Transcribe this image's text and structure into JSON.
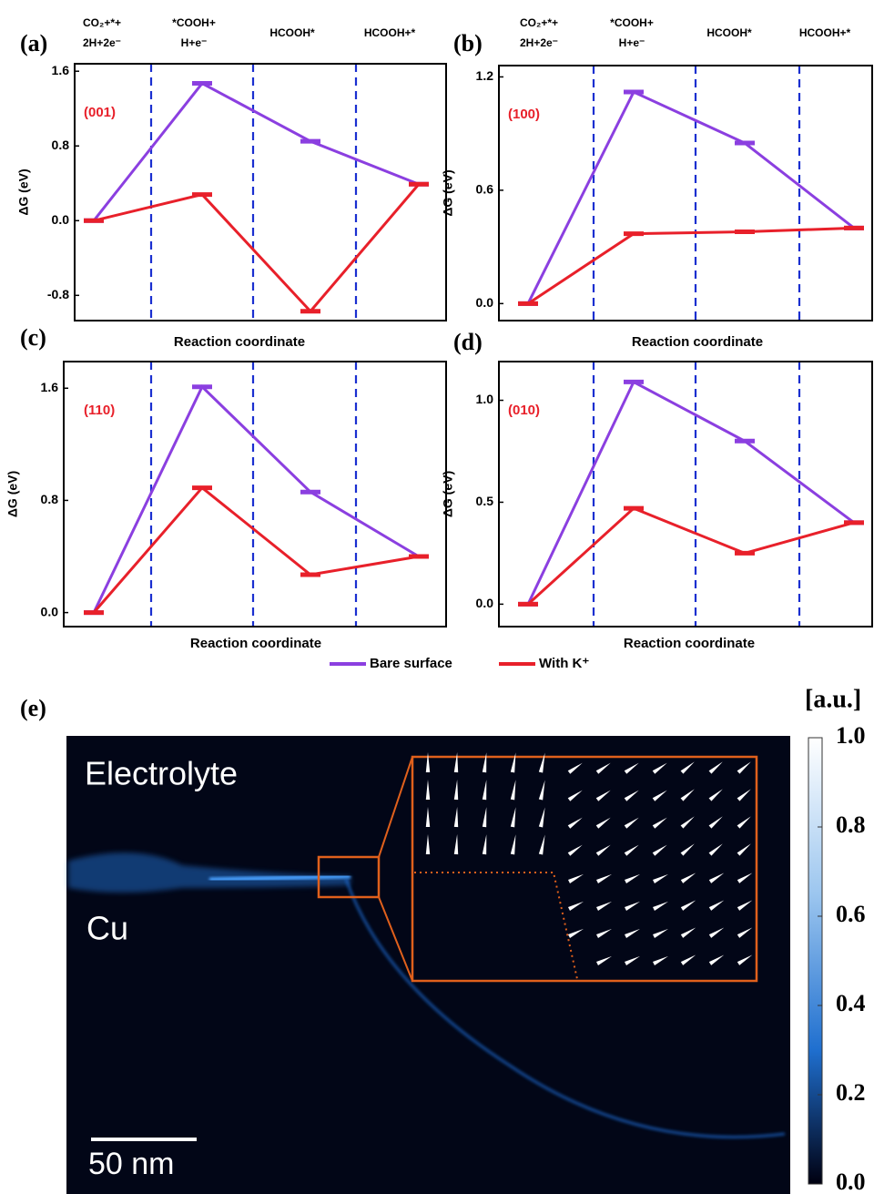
{
  "chart_data": [
    {
      "type": "line",
      "panel_label": "(a)",
      "facet": "(001)",
      "ylabel": "ΔG (eV)",
      "xlabel": "Reaction coordinate",
      "categories": [
        "CO₂+*+ 2H+2e⁻",
        "*COOH+ H+e⁻",
        "HCOOH*",
        "HCOOH+*"
      ],
      "series": [
        {
          "name": "Bare surface",
          "color": "#8b3fe0",
          "values": [
            0,
            1.47,
            0.85,
            0.39
          ]
        },
        {
          "name": "With K⁺",
          "color": "#e8202a",
          "values": [
            0,
            0.28,
            -0.97,
            0.39
          ]
        }
      ],
      "ylim": [
        -1.07,
        1.68
      ],
      "yticks": [
        -0.8,
        {
          "value": 0,
          "label": "0.0"
        },
        0.8,
        1.6
      ]
    },
    {
      "type": "line",
      "panel_label": "(b)",
      "facet": "(100)",
      "ylabel": "ΔG (eV)",
      "xlabel": "Reaction coordinate",
      "categories": [
        "CO₂+*+ 2H+2e⁻",
        "*COOH+ H+e⁻",
        "HCOOH*",
        "HCOOH+*"
      ],
      "series": [
        {
          "color": "#8b3fe0",
          "values": [
            0,
            1.12,
            0.85,
            0.4
          ]
        },
        {
          "color": "#e8202a",
          "values": [
            0,
            0.37,
            0.38,
            0.4
          ]
        }
      ],
      "ylim": [
        -0.09,
        1.26
      ],
      "yticks": [
        {
          "value": 0,
          "label": "0.0"
        },
        0.6,
        1.2
      ]
    },
    {
      "type": "line",
      "panel_label": "(c)",
      "facet": "(110)",
      "ylabel": "ΔG (eV)",
      "xlabel": "Reaction coordinate",
      "series": [
        {
          "color": "#8b3fe0",
          "values": [
            0,
            1.61,
            0.86,
            0.4
          ]
        },
        {
          "color": "#e8202a",
          "values": [
            0,
            0.89,
            0.27,
            0.4
          ]
        }
      ],
      "ylim": [
        -0.1,
        1.79
      ],
      "yticks": [
        {
          "value": 0,
          "label": "0.0"
        },
        0.8,
        1.6
      ]
    },
    {
      "type": "line",
      "panel_label": "(d)",
      "facet": "(010)",
      "ylabel": "ΔG (eV)",
      "xlabel": "Reaction coordinate",
      "series": [
        {
          "color": "#8b3fe0",
          "values": [
            0,
            1.09,
            0.8,
            0.4
          ]
        },
        {
          "color": "#e8202a",
          "values": [
            0,
            0.47,
            0.25,
            0.4
          ]
        }
      ],
      "ylim": [
        -0.11,
        1.19
      ],
      "yticks": [
        {
          "value": 0,
          "label": "0.0"
        },
        0.5,
        {
          "value": 1,
          "label": "1.0"
        }
      ]
    }
  ],
  "figure_e": {
    "panel_label": "(e)",
    "region_labels": [
      "Electrolyte",
      "Cu"
    ],
    "scale_bar": "50 nm",
    "colorbar": {
      "title": "[a.u.]",
      "lim": [
        0,
        1
      ],
      "ticks": [
        {
          "value": 0,
          "label": "0.0"
        },
        0.2,
        0.4,
        0.6,
        0.8,
        {
          "value": 1,
          "label": "1.0"
        }
      ]
    }
  }
}
